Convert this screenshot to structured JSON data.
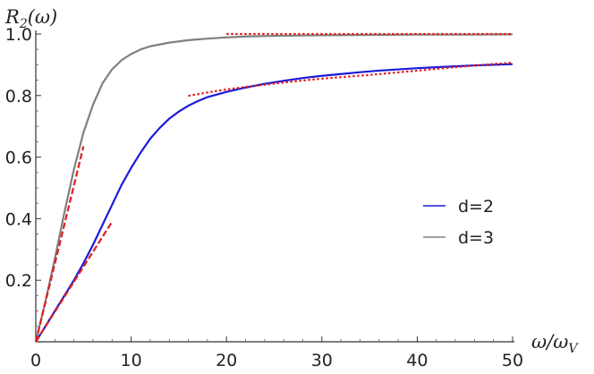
{
  "chart_data": {
    "type": "line",
    "xlabel": "ω/ω",
    "xlabel_sub": "V",
    "ylabel": "R",
    "ylabel_sub": "2",
    "ylabel_tail": "(ω)",
    "xlim": [
      0,
      50
    ],
    "ylim": [
      0,
      1.0
    ],
    "xticks": [
      0,
      10,
      20,
      30,
      40,
      50
    ],
    "yticks": [
      0.2,
      0.4,
      0.6,
      0.8,
      1.0
    ],
    "ytick_labels": [
      "0.2",
      "0.4",
      "0.6",
      "0.8",
      "1.0"
    ],
    "grid": false,
    "legend_position": "right",
    "series": [
      {
        "name": "d=2",
        "color": "#1a1adb",
        "x": [
          0,
          1,
          2,
          3,
          4,
          5,
          6,
          7,
          8,
          9,
          10,
          11,
          12,
          13,
          14,
          15,
          16,
          17,
          18,
          20,
          22,
          24,
          26,
          28,
          30,
          32,
          34,
          36,
          38,
          40,
          42,
          44,
          46,
          48,
          50
        ],
        "y": [
          0,
          0.05,
          0.1,
          0.15,
          0.2,
          0.255,
          0.315,
          0.38,
          0.445,
          0.51,
          0.565,
          0.615,
          0.66,
          0.695,
          0.725,
          0.748,
          0.767,
          0.782,
          0.795,
          0.812,
          0.826,
          0.838,
          0.848,
          0.857,
          0.864,
          0.87,
          0.876,
          0.881,
          0.885,
          0.889,
          0.892,
          0.895,
          0.898,
          0.9,
          0.902
        ]
      },
      {
        "name": "d=3",
        "color": "#808080",
        "x": [
          0,
          1,
          2,
          3,
          4,
          5,
          6,
          7,
          8,
          9,
          10,
          11,
          12,
          14,
          16,
          18,
          20,
          22,
          25,
          30,
          35,
          40,
          45,
          50
        ],
        "y": [
          0,
          0.13,
          0.27,
          0.42,
          0.56,
          0.68,
          0.77,
          0.84,
          0.885,
          0.915,
          0.935,
          0.95,
          0.96,
          0.972,
          0.98,
          0.985,
          0.989,
          0.992,
          0.994,
          0.996,
          0.997,
          0.998,
          0.998,
          0.999
        ]
      }
    ],
    "asymptotes": [
      {
        "style": "dashed",
        "color": "#e01e1e",
        "x": [
          0,
          5
        ],
        "y": [
          0,
          0.635
        ]
      },
      {
        "style": "dashed",
        "color": "#e01e1e",
        "x": [
          0,
          8
        ],
        "y": [
          0,
          0.39
        ]
      },
      {
        "style": "dotted",
        "color": "#e01e1e",
        "x": [
          20,
          50
        ],
        "y": [
          1.0,
          1.0
        ]
      },
      {
        "style": "dotted",
        "color": "#e01e1e",
        "x": [
          16,
          18,
          20,
          22,
          25,
          28,
          30,
          35,
          40,
          45,
          50
        ],
        "y": [
          0.799,
          0.81,
          0.82,
          0.828,
          0.839,
          0.849,
          0.855,
          0.867,
          0.881,
          0.895,
          0.907
        ]
      }
    ]
  }
}
